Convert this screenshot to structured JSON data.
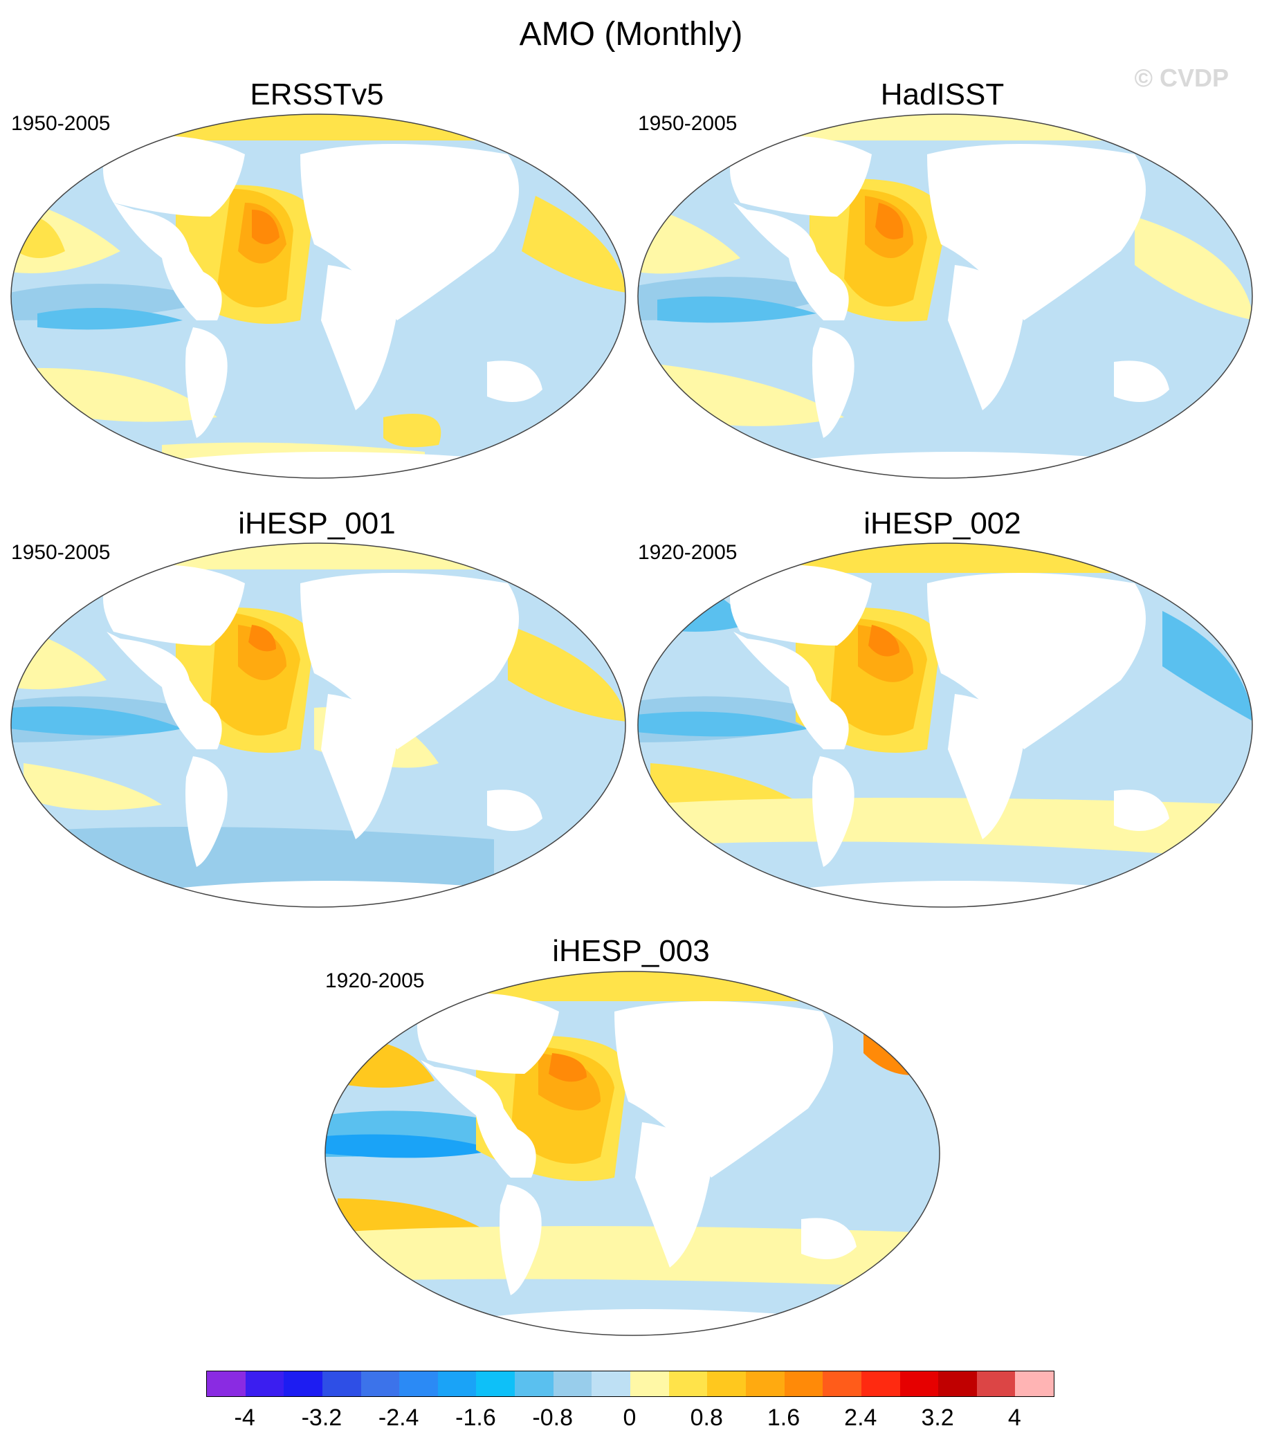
{
  "title": "AMO (Monthly)",
  "watermark": "© CVDP",
  "panels": [
    {
      "name": "ERSSTv5",
      "period": "1950-2005"
    },
    {
      "name": "HadISST",
      "period": "1950-2005"
    },
    {
      "name": "iHESP_001",
      "period": "1950-2005"
    },
    {
      "name": "iHESP_002",
      "period": "1920-2005"
    },
    {
      "name": "iHESP_003",
      "period": "1920-2005"
    }
  ],
  "colorbar": {
    "colors": [
      "#8a2be2",
      "#3b1ef0",
      "#1d1df2",
      "#2e4fe6",
      "#3c73ea",
      "#2b8af5",
      "#1aa3f7",
      "#0ec0f8",
      "#5ac0ef",
      "#98cdeb",
      "#bee0f4",
      "#fff8a6",
      "#ffe34a",
      "#ffc81e",
      "#ffaa10",
      "#ff8a08",
      "#ff5c1a",
      "#ff2a10",
      "#e60000",
      "#c00000",
      "#dc4545",
      "#ffb4b4"
    ],
    "tick_labels": [
      "-4",
      "-3.2",
      "-2.4",
      "-1.6",
      "-0.8",
      "0",
      "0.8",
      "1.6",
      "2.4",
      "3.2",
      "4"
    ]
  }
}
